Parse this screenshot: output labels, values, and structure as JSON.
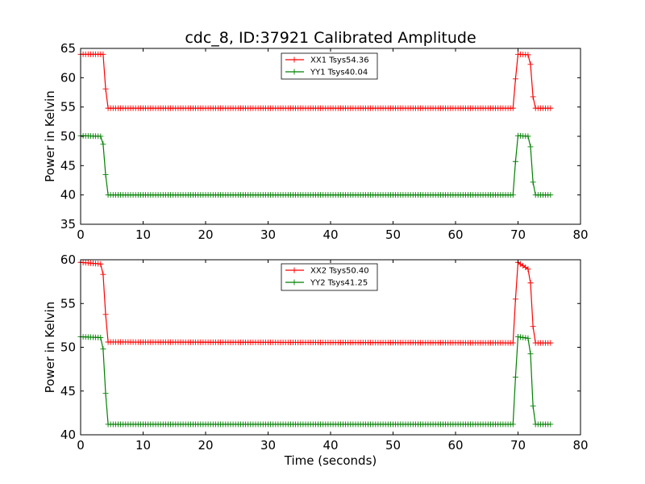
{
  "figure": {
    "title": "cdc_8, ID:37921 Calibrated Amplitude",
    "xlabel": "Time (seconds)"
  },
  "chart_data": [
    {
      "type": "line",
      "ylabel": "Power in Kelvin",
      "xlim": [
        0,
        80
      ],
      "ylim": [
        35,
        65
      ],
      "xticks": [
        0,
        10,
        20,
        30,
        40,
        50,
        60,
        70,
        80
      ],
      "yticks": [
        35,
        40,
        45,
        50,
        55,
        60,
        65
      ],
      "grid": false,
      "legend_position": "top-center",
      "marker": "+",
      "series": [
        {
          "name": "XX1 Tsys54.36",
          "color": "#ff0000",
          "high": 64.0,
          "low": 54.8,
          "profile": [
            [
              0,
              64.0
            ],
            [
              3.6,
              64.0
            ],
            [
              3.9,
              59.2
            ],
            [
              4.3,
              54.8
            ],
            [
              69.3,
              54.8
            ],
            [
              69.6,
              59.8
            ],
            [
              70.0,
              64.0
            ],
            [
              71.9,
              63.9
            ],
            [
              72.3,
              57.4
            ],
            [
              72.7,
              54.8
            ],
            [
              75.4,
              54.8
            ]
          ]
        },
        {
          "name": "YY1 Tsys40.04",
          "color": "#008000",
          "high": 50.1,
          "low": 40.0,
          "profile": [
            [
              0,
              50.1
            ],
            [
              3.5,
              50.0
            ],
            [
              3.9,
              44.6
            ],
            [
              4.3,
              40.0
            ],
            [
              69.3,
              40.0
            ],
            [
              69.6,
              45.7
            ],
            [
              70.0,
              50.1
            ],
            [
              71.9,
              50.0
            ],
            [
              72.3,
              42.9
            ],
            [
              72.7,
              40.0
            ],
            [
              75.4,
              40.0
            ]
          ]
        }
      ]
    },
    {
      "type": "line",
      "ylabel": "Power in Kelvin",
      "xlim": [
        0,
        80
      ],
      "ylim": [
        40,
        60
      ],
      "xticks": [
        0,
        10,
        20,
        30,
        40,
        50,
        60,
        70,
        80
      ],
      "yticks": [
        40,
        45,
        50,
        55,
        60
      ],
      "grid": false,
      "legend_position": "top-center",
      "marker": "+",
      "series": [
        {
          "name": "XX2 Tsys50.40",
          "color": "#ff0000",
          "high": 59.7,
          "low": 50.5,
          "profile": [
            [
              0,
              59.7
            ],
            [
              3.5,
              59.5
            ],
            [
              3.9,
              54.8
            ],
            [
              4.3,
              50.6
            ],
            [
              69.3,
              50.5
            ],
            [
              69.6,
              55.5
            ],
            [
              70.0,
              59.7
            ],
            [
              71.9,
              58.8
            ],
            [
              72.3,
              53.0
            ],
            [
              72.7,
              50.5
            ],
            [
              75.4,
              50.5
            ]
          ]
        },
        {
          "name": "YY2 Tsys41.25",
          "color": "#008000",
          "high": 51.2,
          "low": 41.2,
          "profile": [
            [
              0,
              51.2
            ],
            [
              3.5,
              51.1
            ],
            [
              3.9,
              45.9
            ],
            [
              4.3,
              41.2
            ],
            [
              69.3,
              41.2
            ],
            [
              69.6,
              46.6
            ],
            [
              70.0,
              51.2
            ],
            [
              71.9,
              51.0
            ],
            [
              72.3,
              44.0
            ],
            [
              72.7,
              41.2
            ],
            [
              75.4,
              41.2
            ]
          ]
        }
      ]
    }
  ]
}
